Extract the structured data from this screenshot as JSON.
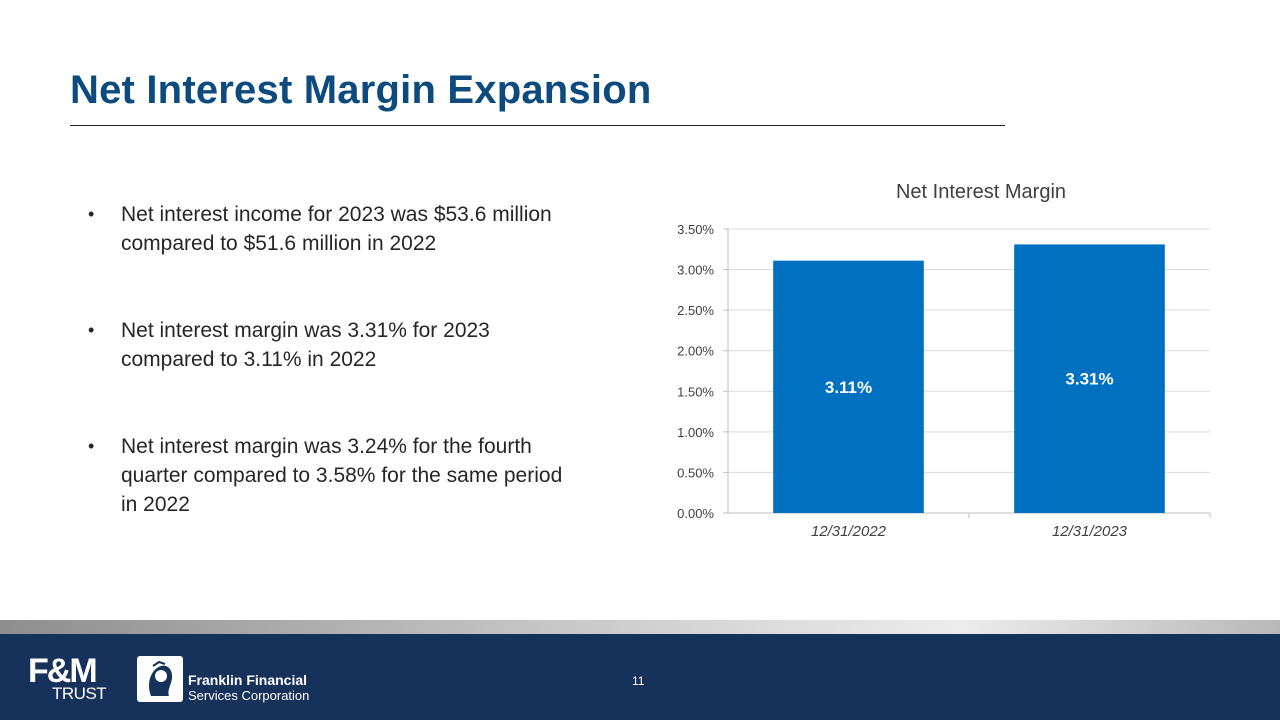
{
  "slide": {
    "title": "Net Interest Margin Expansion",
    "page_number": "11"
  },
  "bullets": [
    "Net interest income for 2023 was $53.6 million compared to $51.6 million in 2022",
    "Net interest margin was 3.31% for 2023 compared to 3.11% in 2022",
    "Net interest margin was 3.24% for the fourth quarter compared to 3.58% for the same period in 2022"
  ],
  "bullet_symbol": "•",
  "footer": {
    "logo_left_line1": "F&M",
    "logo_left_line2": "TRUST",
    "logo_right_line1": "Franklin Financial",
    "logo_right_line2": "Services Corporation"
  },
  "colors": {
    "title": "#0d4a7e",
    "bar": "#0070c0",
    "footer": "#17325a"
  },
  "chart_data": {
    "type": "bar",
    "title": "Net Interest Margin",
    "categories": [
      "12/31/2022",
      "12/31/2023"
    ],
    "values": [
      3.11,
      3.31
    ],
    "data_labels": [
      "3.11%",
      "3.31%"
    ],
    "ylim": [
      0,
      3.5
    ],
    "yticks": [
      0,
      0.5,
      1.0,
      1.5,
      2.0,
      2.5,
      3.0,
      3.5
    ],
    "ytick_labels": [
      "0.00%",
      "0.50%",
      "1.00%",
      "1.50%",
      "2.00%",
      "2.50%",
      "3.00%",
      "3.50%"
    ],
    "xlabel": "",
    "ylabel": "",
    "grid": true
  }
}
